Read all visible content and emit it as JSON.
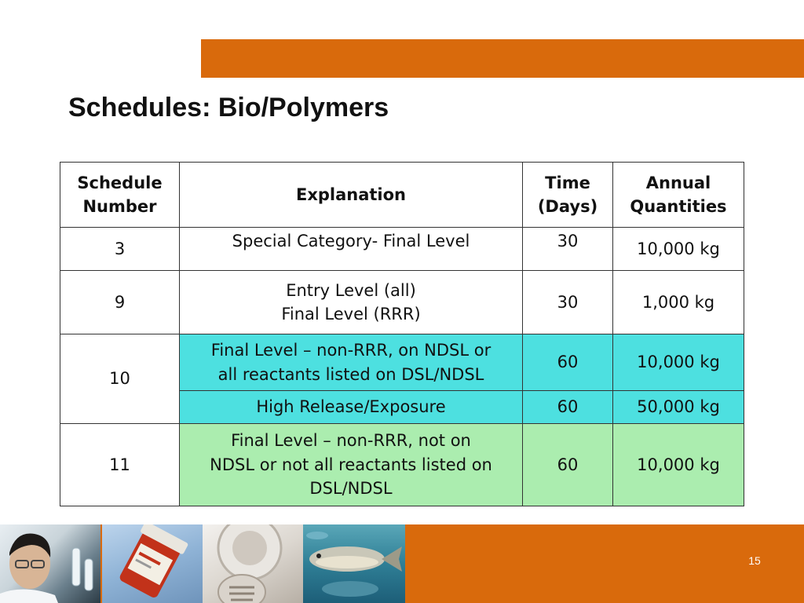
{
  "slide": {
    "title": "Schedules: Bio/Polymers",
    "page_number": "15"
  },
  "table": {
    "headers": {
      "schedule_line1": "Schedule",
      "schedule_line2": "Number",
      "explanation": "Explanation",
      "time_line1": "Time",
      "time_line2": "(Days)",
      "annual_line1": "Annual",
      "annual_line2": "Quantities"
    },
    "rows": {
      "r3": {
        "schedule": "3",
        "explanation": "Special Category- Final Level",
        "time": "30",
        "quantity": "10,000 kg"
      },
      "r9": {
        "schedule": "9",
        "explanation_line1": "Entry Level (all)",
        "explanation_line2": "Final Level (RRR)",
        "time": "30",
        "quantity": "1,000 kg"
      },
      "r10a": {
        "schedule": "10",
        "explanation_line1": "Final Level – non-RRR, on NDSL or",
        "explanation_line2": "all reactants listed on DSL/NDSL",
        "time": "60",
        "quantity": "10,000 kg"
      },
      "r10b": {
        "explanation": "High Release/Exposure",
        "time": "60",
        "quantity": "50,000 kg"
      },
      "r11": {
        "schedule": "11",
        "explanation_line1": "Final Level – non-RRR, not on",
        "explanation_line2": "NDSL or not all reactants listed on",
        "explanation_line3": "DSL/NDSL",
        "time": "60",
        "quantity": "10,000 kg"
      }
    }
  },
  "colors": {
    "accent_orange": "#D96A0C",
    "highlight_cyan": "#4DE0E0",
    "highlight_green": "#ABEDAF"
  },
  "footer_images": [
    "scientist-photo",
    "medicine-bottle-photo",
    "drain-photo",
    "fish-photo"
  ]
}
